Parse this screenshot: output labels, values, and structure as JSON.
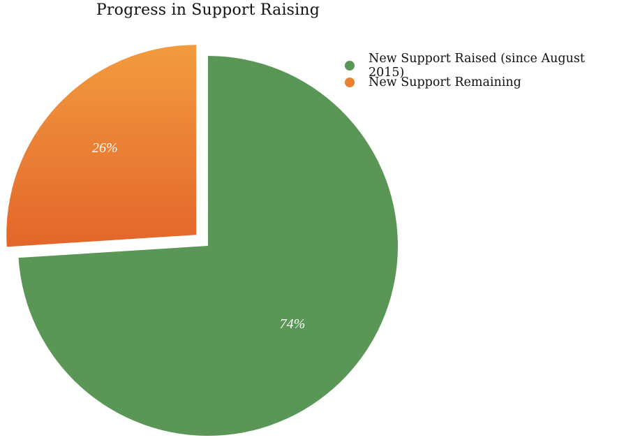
{
  "chart_data": {
    "type": "pie",
    "title": "Progress in Support Raising",
    "slices": [
      {
        "label": "New Support Raised (since August 2015)",
        "value": 74,
        "value_label": "74%",
        "color": "#5a9655"
      },
      {
        "label": "New Support Remaining",
        "value": 26,
        "value_label": "26%",
        "color": "#ea8130"
      }
    ],
    "legend": "top-right"
  }
}
